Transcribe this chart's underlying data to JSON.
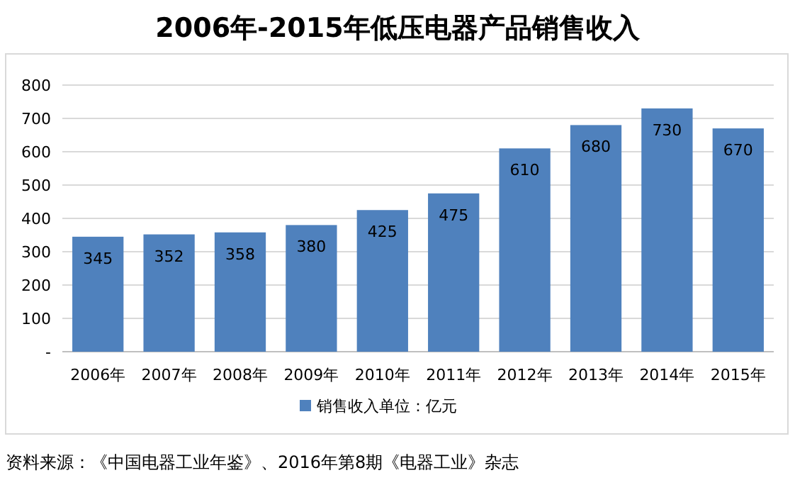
{
  "chart_data": {
    "type": "bar",
    "title": "2006年-2015年低压电器产品销售收入",
    "categories": [
      "2006年",
      "2007年",
      "2008年",
      "2009年",
      "2010年",
      "2011年",
      "2012年",
      "2013年",
      "2014年",
      "2015年"
    ],
    "series": [
      {
        "name": "销售收入单位：亿元",
        "color": "#4f81bd",
        "values": [
          345,
          352,
          358,
          380,
          425,
          475,
          610,
          680,
          730,
          670
        ]
      }
    ],
    "ylim": [
      0,
      800
    ],
    "yticks": [
      {
        "value": 0,
        "label": "-"
      },
      100,
      200,
      300,
      400,
      500,
      600,
      700,
      800
    ],
    "grid": "y",
    "legend": "bottom",
    "data_labels": true,
    "annotations": [
      "资料来源：《中国电器工业年鉴》、2016年第8期《电器工业》杂志"
    ]
  }
}
